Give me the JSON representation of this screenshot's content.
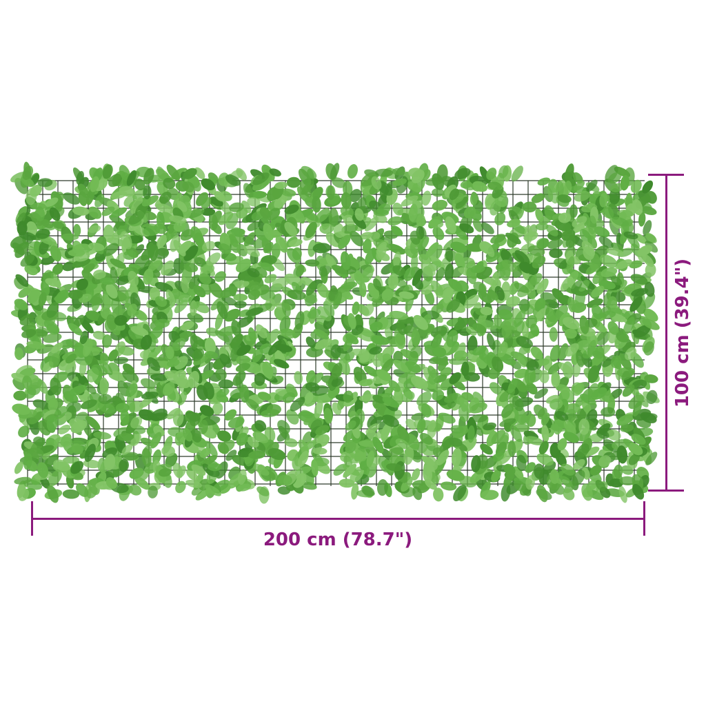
{
  "product": {
    "name": "artificial leaf fence screen",
    "leaf_color": "#5aa63f",
    "leaf_dark": "#3f8a2c",
    "frame_color": "#2d3a2a"
  },
  "dimensions": {
    "width_label": "200 cm (78.7\")",
    "height_label": "100 cm (39.4\")",
    "line_color": "#8b1a7d"
  }
}
